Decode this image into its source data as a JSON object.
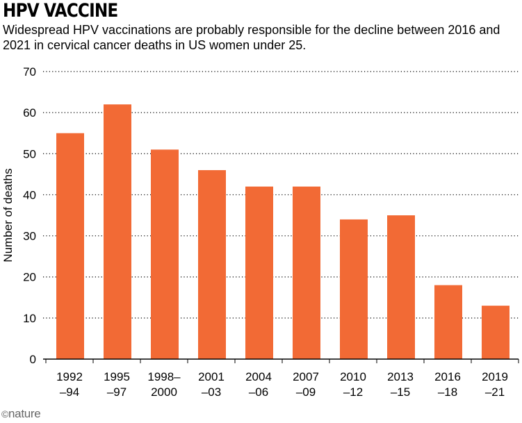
{
  "chart_data": {
    "type": "bar",
    "title": "HPV VACCINE",
    "subtitle": "Widespread HPV vaccinations are probably responsible for the decline between 2016 and 2021 in cervical cancer deaths in US women under 25.",
    "ylabel": "Number of deaths",
    "xlabel": "",
    "ylim": [
      0,
      70
    ],
    "yticks": [
      0,
      10,
      20,
      30,
      40,
      50,
      60,
      70
    ],
    "categories": [
      [
        "1992",
        "–94"
      ],
      [
        "1995",
        "–97"
      ],
      [
        "1998–",
        "2000"
      ],
      [
        "2001",
        "–03"
      ],
      [
        "2004",
        "–06"
      ],
      [
        "2007",
        "–09"
      ],
      [
        "2010",
        "–12"
      ],
      [
        "2013",
        "–15"
      ],
      [
        "2016",
        "–18"
      ],
      [
        "2019",
        "–21"
      ]
    ],
    "values": [
      55,
      62,
      51,
      46,
      42,
      42,
      34,
      35,
      18,
      13
    ],
    "bar_color": "#f26a35",
    "grid": true
  },
  "credit": {
    "mark": "©",
    "name": "nature"
  }
}
